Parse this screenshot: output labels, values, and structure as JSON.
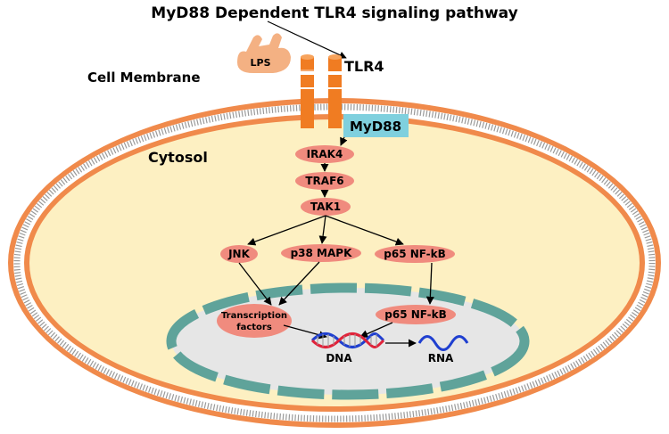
{
  "title": "MyD88 Dependent TLR4 signaling pathway",
  "labels": {
    "cell_membrane": "Cell Membrane",
    "cytosol": "Cytosol",
    "lps": "LPS",
    "tlr4": "TLR4",
    "myd88": "MyD88",
    "dna": "DNA",
    "rna": "RNA"
  },
  "nodes": {
    "irak4": "IRAK4",
    "traf6": "TRAF6",
    "tak1": "TAK1",
    "jnk": "JNK",
    "p38": "p38 MAPK",
    "p65_cyto": "p65 NF-kB",
    "tf_line1": "Transcription",
    "tf_line2": "factors",
    "p65_nuc": "p65 NF-kB"
  },
  "colors": {
    "membrane": "#f08a4b",
    "cytosol": "#fdf0c2",
    "nucleus_envelope": "#5fa39a",
    "nucleus": "#e6e6e6",
    "node": "#f08b7e",
    "myd88": "#7fd0de",
    "receptor": "#f07c22",
    "lps": "#f4b183",
    "dna_blue": "#1f3fd0",
    "dna_red": "#e0233a"
  }
}
